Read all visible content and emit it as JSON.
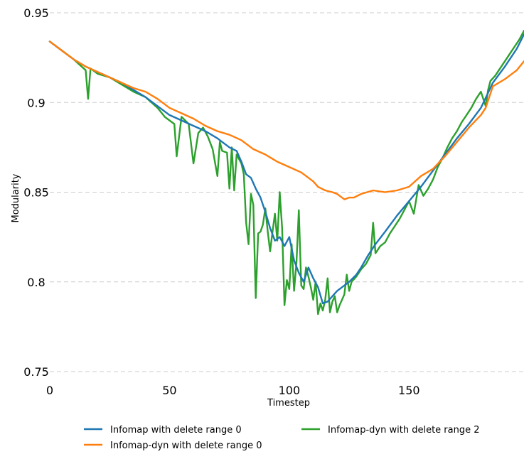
{
  "chart_data": {
    "type": "line",
    "title": "",
    "xlabel": "Timestep",
    "ylabel": "Modularity",
    "xlim": [
      0,
      198
    ],
    "ylim": [
      0.75,
      0.95
    ],
    "xticks": [
      0,
      50,
      100,
      150
    ],
    "xtick_labels": [
      "0",
      "50",
      "100",
      "150"
    ],
    "yticks": [
      0.75,
      0.8,
      0.85,
      0.9,
      0.95
    ],
    "ytick_labels": [
      "0.75",
      "0.8",
      "0.85",
      "0.9",
      "0.95"
    ],
    "grid": "horizontal dashed",
    "legend_position": "bottom",
    "series": [
      {
        "name": "Infomap with delete range 0",
        "color": "#1f77b4",
        "x": [
          0,
          5,
          10,
          15,
          20,
          25,
          30,
          35,
          40,
          45,
          50,
          55,
          60,
          65,
          70,
          72,
          75,
          78,
          80,
          82,
          84,
          86,
          88,
          90,
          92,
          94,
          96,
          98,
          100,
          102,
          104,
          106,
          108,
          110,
          112,
          114,
          116,
          118,
          120,
          122,
          125,
          128,
          130,
          133,
          136,
          140,
          145,
          150,
          155,
          160,
          165,
          170,
          175,
          180,
          185,
          190,
          195,
          198
        ],
        "y": [
          0.934,
          0.929,
          0.924,
          0.92,
          0.917,
          0.914,
          0.911,
          0.907,
          0.903,
          0.898,
          0.893,
          0.89,
          0.887,
          0.884,
          0.88,
          0.878,
          0.875,
          0.873,
          0.867,
          0.86,
          0.858,
          0.852,
          0.847,
          0.839,
          0.83,
          0.823,
          0.825,
          0.82,
          0.825,
          0.812,
          0.805,
          0.8,
          0.808,
          0.802,
          0.797,
          0.788,
          0.789,
          0.792,
          0.795,
          0.797,
          0.8,
          0.804,
          0.808,
          0.815,
          0.821,
          0.828,
          0.837,
          0.845,
          0.853,
          0.862,
          0.871,
          0.88,
          0.888,
          0.897,
          0.911,
          0.92,
          0.93,
          0.938
        ]
      },
      {
        "name": "Infomap-dyn with delete range 0",
        "color": "#ff7f0e",
        "x": [
          0,
          5,
          10,
          15,
          20,
          25,
          30,
          35,
          40,
          45,
          50,
          55,
          60,
          65,
          70,
          75,
          80,
          85,
          90,
          95,
          100,
          105,
          110,
          112,
          115,
          118,
          120,
          122,
          123,
          125,
          127,
          130,
          135,
          140,
          145,
          150,
          155,
          160,
          165,
          170,
          175,
          180,
          182,
          185,
          190,
          195,
          198
        ],
        "y": [
          0.934,
          0.929,
          0.924,
          0.92,
          0.917,
          0.914,
          0.911,
          0.908,
          0.906,
          0.902,
          0.897,
          0.894,
          0.891,
          0.887,
          0.884,
          0.882,
          0.879,
          0.874,
          0.871,
          0.867,
          0.864,
          0.861,
          0.856,
          0.853,
          0.851,
          0.85,
          0.849,
          0.847,
          0.846,
          0.847,
          0.847,
          0.849,
          0.851,
          0.85,
          0.851,
          0.853,
          0.859,
          0.863,
          0.87,
          0.878,
          0.886,
          0.893,
          0.897,
          0.909,
          0.913,
          0.918,
          0.923
        ]
      },
      {
        "name": "Infomap-dyn with delete range 2",
        "color": "#2ca02c",
        "x": [
          0,
          5,
          10,
          15,
          16,
          17,
          20,
          25,
          30,
          35,
          40,
          45,
          48,
          50,
          52,
          53,
          55,
          58,
          60,
          62,
          64,
          66,
          68,
          70,
          71,
          72,
          74,
          75,
          76,
          77,
          78,
          80,
          81,
          82,
          83,
          84,
          85,
          86,
          87,
          88,
          89,
          90,
          91,
          92,
          93,
          94,
          95,
          96,
          97,
          98,
          99,
          100,
          101,
          102,
          103,
          104,
          105,
          106,
          107,
          108,
          109,
          110,
          111,
          112,
          113,
          114,
          115,
          116,
          117,
          118,
          119,
          120,
          121,
          122,
          123,
          124,
          125,
          126,
          128,
          130,
          132,
          134,
          135,
          136,
          138,
          140,
          142,
          144,
          146,
          148,
          150,
          152,
          154,
          156,
          158,
          160,
          162,
          164,
          166,
          168,
          170,
          172,
          174,
          176,
          178,
          180,
          182,
          183,
          184,
          186,
          188,
          190,
          192,
          194,
          196,
          198
        ],
        "y": [
          0.934,
          0.929,
          0.924,
          0.918,
          0.902,
          0.919,
          0.916,
          0.914,
          0.91,
          0.906,
          0.903,
          0.897,
          0.892,
          0.89,
          0.888,
          0.87,
          0.892,
          0.888,
          0.866,
          0.883,
          0.886,
          0.881,
          0.874,
          0.859,
          0.878,
          0.873,
          0.872,
          0.852,
          0.875,
          0.851,
          0.871,
          0.866,
          0.86,
          0.833,
          0.821,
          0.849,
          0.843,
          0.791,
          0.827,
          0.828,
          0.832,
          0.841,
          0.828,
          0.817,
          0.828,
          0.838,
          0.823,
          0.85,
          0.83,
          0.787,
          0.801,
          0.796,
          0.821,
          0.795,
          0.811,
          0.84,
          0.798,
          0.796,
          0.808,
          0.803,
          0.797,
          0.79,
          0.8,
          0.782,
          0.788,
          0.784,
          0.79,
          0.802,
          0.783,
          0.789,
          0.792,
          0.783,
          0.787,
          0.79,
          0.793,
          0.804,
          0.795,
          0.8,
          0.803,
          0.807,
          0.81,
          0.815,
          0.833,
          0.816,
          0.82,
          0.822,
          0.827,
          0.831,
          0.835,
          0.84,
          0.845,
          0.838,
          0.854,
          0.848,
          0.852,
          0.857,
          0.864,
          0.869,
          0.875,
          0.88,
          0.884,
          0.889,
          0.893,
          0.897,
          0.902,
          0.906,
          0.898,
          0.907,
          0.912,
          0.915,
          0.919,
          0.923,
          0.927,
          0.931,
          0.935,
          0.94
        ]
      }
    ]
  }
}
